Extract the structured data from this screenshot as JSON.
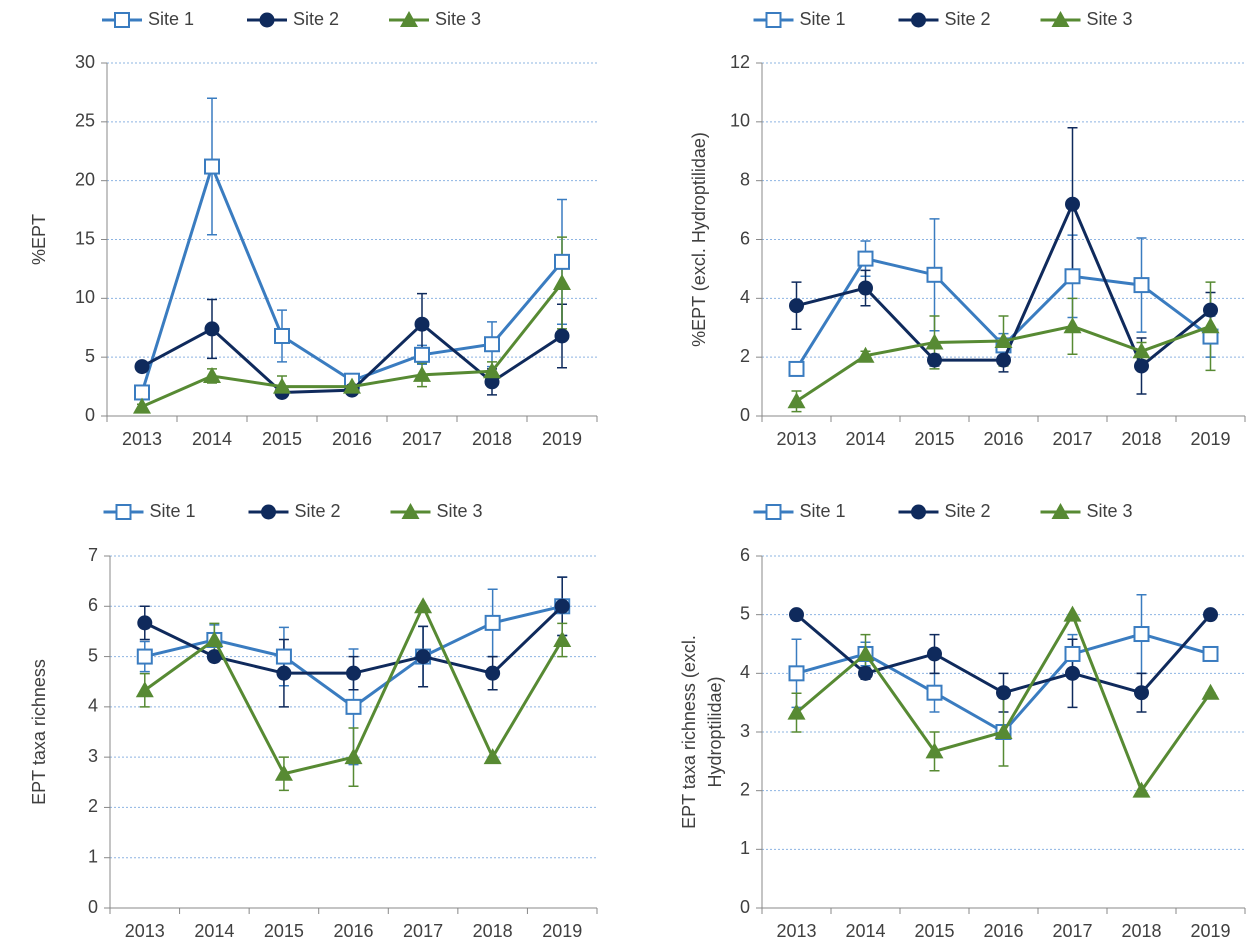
{
  "chart_data": [
    {
      "type": "line",
      "ylabel": "%EPT",
      "categories": [
        "2013",
        "2014",
        "2015",
        "2016",
        "2017",
        "2018",
        "2019"
      ],
      "ylim": [
        0,
        30
      ],
      "yticks": [
        0,
        5,
        10,
        15,
        20,
        25,
        30
      ],
      "grid": true,
      "series": [
        {
          "name": "Site 1",
          "color": "#3a7cc0",
          "marker": "square",
          "values": [
            2.0,
            21.2,
            6.8,
            3.0,
            5.2,
            6.1,
            13.1
          ],
          "errors": [
            0.3,
            5.8,
            2.2,
            0.5,
            0.8,
            1.9,
            5.3
          ]
        },
        {
          "name": "Site 2",
          "color": "#0f2a5c",
          "marker": "circle",
          "values": [
            4.2,
            7.4,
            2.0,
            2.2,
            7.8,
            2.9,
            6.8
          ],
          "errors": [
            0.4,
            2.5,
            0.3,
            0.3,
            2.6,
            1.1,
            2.7
          ]
        },
        {
          "name": "Site 3",
          "color": "#578a33",
          "marker": "triangle",
          "values": [
            0.8,
            3.4,
            2.5,
            2.5,
            3.5,
            3.8,
            11.3
          ],
          "errors": [
            0.2,
            0.6,
            0.9,
            0.4,
            1.0,
            0.8,
            3.9
          ]
        }
      ]
    },
    {
      "type": "line",
      "ylabel": "%EPT (excl. Hydroptilidae)",
      "categories": [
        "2013",
        "2014",
        "2015",
        "2016",
        "2017",
        "2018",
        "2019"
      ],
      "ylim": [
        0,
        12
      ],
      "yticks": [
        0,
        2,
        4,
        6,
        8,
        10,
        12
      ],
      "grid": true,
      "series": [
        {
          "name": "Site 1",
          "color": "#3a7cc0",
          "marker": "square",
          "values": [
            1.6,
            5.35,
            4.8,
            2.4,
            4.75,
            4.45,
            2.7
          ],
          "errors": [
            0.2,
            0.6,
            1.9,
            0.4,
            1.4,
            1.6,
            0.7
          ]
        },
        {
          "name": "Site 2",
          "color": "#0f2a5c",
          "marker": "circle",
          "values": [
            3.75,
            4.35,
            1.9,
            1.9,
            7.2,
            1.7,
            3.6
          ],
          "errors": [
            0.8,
            0.6,
            0.2,
            0.4,
            2.6,
            0.95,
            0.6
          ]
        },
        {
          "name": "Site 3",
          "color": "#578a33",
          "marker": "triangle",
          "values": [
            0.5,
            2.05,
            2.5,
            2.55,
            3.05,
            2.2,
            3.05
          ],
          "errors": [
            0.35,
            0.15,
            0.9,
            0.85,
            0.95,
            0.3,
            1.5
          ]
        }
      ]
    },
    {
      "type": "line",
      "ylabel": "EPT taxa richness",
      "categories": [
        "2013",
        "2014",
        "2015",
        "2016",
        "2017",
        "2018",
        "2019"
      ],
      "ylim": [
        0,
        7
      ],
      "yticks": [
        0,
        1,
        2,
        3,
        4,
        5,
        6,
        7
      ],
      "grid": true,
      "series": [
        {
          "name": "Site 1",
          "color": "#3a7cc0",
          "marker": "square",
          "values": [
            5.0,
            5.33,
            5.0,
            4.0,
            5.0,
            5.67,
            6.0
          ],
          "errors": [
            0.3,
            0.3,
            0.58,
            1.15,
            0.6,
            0.67,
            0.58
          ]
        },
        {
          "name": "Site 2",
          "color": "#0f2a5c",
          "marker": "circle",
          "values": [
            5.67,
            5.0,
            4.67,
            4.67,
            5.0,
            4.67,
            6.0
          ],
          "errors": [
            0.33,
            0.1,
            0.67,
            0.33,
            0.6,
            0.33,
            0.58
          ]
        },
        {
          "name": "Site 3",
          "color": "#578a33",
          "marker": "triangle",
          "values": [
            4.33,
            5.33,
            2.67,
            3.0,
            6.0,
            3.0,
            5.33
          ],
          "errors": [
            0.33,
            0.33,
            0.33,
            0.58,
            0,
            0,
            0.33
          ]
        }
      ]
    },
    {
      "type": "line",
      "ylabel": [
        "EPT taxa richness (excl.",
        "Hydroptilidae)"
      ],
      "categories": [
        "2013",
        "2014",
        "2015",
        "2016",
        "2017",
        "2018",
        "2019"
      ],
      "ylim": [
        0,
        6
      ],
      "yticks": [
        0,
        1,
        2,
        3,
        4,
        5,
        6
      ],
      "grid": true,
      "series": [
        {
          "name": "Site 1",
          "color": "#3a7cc0",
          "marker": "square",
          "values": [
            4.0,
            4.33,
            3.67,
            3.0,
            4.33,
            4.67,
            4.33
          ],
          "errors": [
            0.58,
            0.2,
            0.33,
            0.1,
            0.33,
            0.67,
            0
          ]
        },
        {
          "name": "Site 2",
          "color": "#0f2a5c",
          "marker": "circle",
          "values": [
            5.0,
            4.0,
            4.33,
            3.67,
            4.0,
            3.67,
            5.0
          ],
          "errors": [
            0,
            0.1,
            0.33,
            0.33,
            0.58,
            0.33,
            0
          ]
        },
        {
          "name": "Site 3",
          "color": "#578a33",
          "marker": "triangle",
          "values": [
            3.33,
            4.33,
            2.67,
            3.0,
            5.0,
            2.0,
            3.67
          ],
          "errors": [
            0.33,
            0.33,
            0.33,
            0.58,
            0,
            0,
            0
          ]
        }
      ]
    }
  ]
}
